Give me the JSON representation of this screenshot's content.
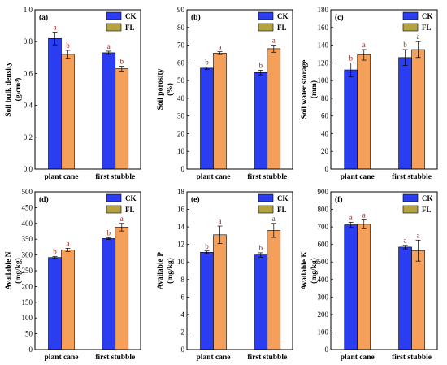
{
  "colors": {
    "CK": "#2a3df0",
    "FL": "#f5a05a",
    "legend_FL": "#b5a341",
    "axis": "#000000"
  },
  "legend": [
    {
      "key": "CK",
      "label": "CK"
    },
    {
      "key": "FL",
      "label": "FL"
    }
  ],
  "chart_data": [
    {
      "type": "bar",
      "id": "a",
      "tag": "(a)",
      "ylabel": [
        "Soil bulk density",
        "(g/cm³)"
      ],
      "ylim": [
        0,
        1.0
      ],
      "yticks": [
        "0.0",
        "0.2",
        "0.4",
        "0.6",
        "0.8",
        "1.0"
      ],
      "categories": [
        "plant cane",
        "first stubble"
      ],
      "series": [
        {
          "name": "CK",
          "values": [
            0.82,
            0.73
          ],
          "errors": [
            0.04,
            0.01
          ],
          "sig": [
            "a",
            "a"
          ]
        },
        {
          "name": "FL",
          "values": [
            0.72,
            0.63
          ],
          "errors": [
            0.025,
            0.015
          ],
          "sig": [
            "b",
            "b"
          ]
        }
      ]
    },
    {
      "type": "bar",
      "id": "b",
      "tag": "(b)",
      "ylabel": [
        "Soil porosity",
        "(%)"
      ],
      "ylim": [
        0,
        90
      ],
      "yticks": [
        "0",
        "10",
        "20",
        "30",
        "40",
        "50",
        "60",
        "70",
        "80",
        "90"
      ],
      "categories": [
        "plant cane",
        "first stubble"
      ],
      "series": [
        {
          "name": "CK",
          "values": [
            57,
            54.5
          ],
          "errors": [
            0.6,
            1.3
          ],
          "sig": [
            "b",
            "b"
          ]
        },
        {
          "name": "FL",
          "values": [
            65.5,
            68
          ],
          "errors": [
            0.8,
            2.0
          ],
          "sig": [
            "a",
            "a"
          ]
        }
      ]
    },
    {
      "type": "bar",
      "id": "c",
      "tag": "(c)",
      "ylabel": [
        "Soil water storage",
        "(mm)"
      ],
      "ylim": [
        0,
        180
      ],
      "yticks": [
        "0",
        "20",
        "40",
        "60",
        "80",
        "100",
        "120",
        "140",
        "160",
        "180"
      ],
      "categories": [
        "plant cane",
        "first stubble"
      ],
      "series": [
        {
          "name": "CK",
          "values": [
            112,
            126
          ],
          "errors": [
            8,
            9
          ],
          "sig": [
            "b",
            "b"
          ]
        },
        {
          "name": "FL",
          "values": [
            129,
            135
          ],
          "errors": [
            6,
            9
          ],
          "sig": [
            "a",
            "a"
          ]
        }
      ]
    },
    {
      "type": "bar",
      "id": "d",
      "tag": "(d)",
      "ylabel": [
        "Available N",
        "(mg/kg)"
      ],
      "ylim": [
        0,
        500
      ],
      "yticks": [
        "0",
        "50",
        "100",
        "150",
        "200",
        "250",
        "300",
        "350",
        "400",
        "450",
        "500"
      ],
      "categories": [
        "plant cane",
        "first stubble"
      ],
      "series": [
        {
          "name": "CK",
          "values": [
            292,
            352
          ],
          "errors": [
            3,
            3
          ],
          "sig": [
            "b",
            "b"
          ]
        },
        {
          "name": "FL",
          "values": [
            316,
            388
          ],
          "errors": [
            5,
            12
          ],
          "sig": [
            "a",
            "a"
          ]
        }
      ]
    },
    {
      "type": "bar",
      "id": "e",
      "tag": "(e)",
      "ylabel": [
        "Available P",
        "(mg/kg)"
      ],
      "ylim": [
        0,
        18
      ],
      "yticks": [
        "0",
        "2",
        "4",
        "6",
        "8",
        "10",
        "12",
        "14",
        "16",
        "18"
      ],
      "categories": [
        "plant cane",
        "first stubble"
      ],
      "series": [
        {
          "name": "CK",
          "values": [
            11.1,
            10.8
          ],
          "errors": [
            0.15,
            0.25
          ],
          "sig": [
            "b",
            "b"
          ]
        },
        {
          "name": "FL",
          "values": [
            13.1,
            13.6
          ],
          "errors": [
            1.0,
            0.8
          ],
          "sig": [
            "a",
            "a"
          ]
        }
      ]
    },
    {
      "type": "bar",
      "id": "f",
      "tag": "(f)",
      "ylabel": [
        "Available K",
        "(mg/kg)"
      ],
      "ylim": [
        0,
        900
      ],
      "yticks": [
        "0",
        "100",
        "200",
        "300",
        "400",
        "500",
        "600",
        "700",
        "800",
        "900"
      ],
      "categories": [
        "plant cane",
        "first stubble"
      ],
      "series": [
        {
          "name": "CK",
          "values": [
            712,
            585
          ],
          "errors": [
            15,
            10
          ],
          "sig": [
            "a",
            "a"
          ]
        },
        {
          "name": "FL",
          "values": [
            715,
            565
          ],
          "errors": [
            25,
            60
          ],
          "sig": [
            "a",
            "a"
          ]
        }
      ]
    }
  ]
}
